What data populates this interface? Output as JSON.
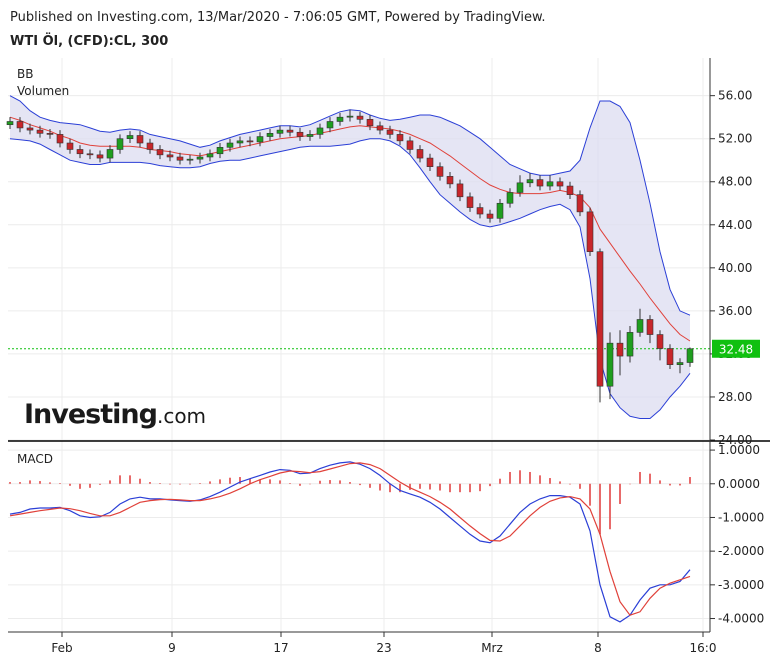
{
  "header": {
    "published": "Published on Investing.com, 13/Mar/2020 - 7:06:05 GMT, Powered by TradingView.",
    "symbol": "WTI Öl, (CFD):CL, 300"
  },
  "logo": {
    "name": "Investing",
    "suffix": ".com"
  },
  "chart_data": [
    {
      "type": "candlestick",
      "labels": [
        "BB",
        "Volumen"
      ],
      "x": [
        0,
        1,
        2,
        3,
        4,
        5,
        6,
        7,
        8,
        9,
        10,
        11,
        12,
        13,
        14,
        15,
        16,
        17,
        18,
        19,
        20,
        21,
        22,
        23,
        24,
        25,
        26,
        27,
        28,
        29,
        30,
        31,
        32,
        33,
        34,
        35,
        36,
        37,
        38,
        39,
        40,
        41,
        42,
        43,
        44,
        45,
        46,
        47,
        48,
        49,
        50,
        51,
        52,
        53,
        54,
        55,
        56,
        57,
        58,
        59,
        60,
        61,
        62,
        63,
        64,
        65,
        66,
        67,
        68
      ],
      "open": [
        53.3,
        53.6,
        53.0,
        52.8,
        52.5,
        52.4,
        51.6,
        51.0,
        50.6,
        50.5,
        50.2,
        51.0,
        52.0,
        52.3,
        51.6,
        51.0,
        50.5,
        50.3,
        50.0,
        50.1,
        50.3,
        50.6,
        51.2,
        51.6,
        51.8,
        51.7,
        52.2,
        52.5,
        52.8,
        52.6,
        52.2,
        52.4,
        53.0,
        53.6,
        54.0,
        54.1,
        53.8,
        53.2,
        52.8,
        52.4,
        51.8,
        51.0,
        50.2,
        49.4,
        48.5,
        47.8,
        46.6,
        45.6,
        45.0,
        44.6,
        46.0,
        47.0,
        47.9,
        48.2,
        47.6,
        48.0,
        47.6,
        46.8,
        45.2,
        41.5,
        29.0,
        33.0,
        31.8,
        34.0,
        35.2,
        33.8,
        32.5,
        31.0,
        31.2
      ],
      "high": [
        54.0,
        54.0,
        53.4,
        53.2,
        52.9,
        52.8,
        52.0,
        51.4,
        51.0,
        50.9,
        51.4,
        52.4,
        52.7,
        52.7,
        52.0,
        51.4,
        50.9,
        50.7,
        50.5,
        50.7,
        51.0,
        51.6,
        52.0,
        52.2,
        52.2,
        52.6,
        52.9,
        53.2,
        53.2,
        53.0,
        52.8,
        53.4,
        54.0,
        54.4,
        54.7,
        54.5,
        54.2,
        53.6,
        53.2,
        52.8,
        52.2,
        51.4,
        50.6,
        49.8,
        48.9,
        48.2,
        47.0,
        46.0,
        45.4,
        46.4,
        47.4,
        48.6,
        48.8,
        48.6,
        48.6,
        48.4,
        48.0,
        47.2,
        45.6,
        41.8,
        34.0,
        34.2,
        34.6,
        36.2,
        35.6,
        34.2,
        32.9,
        31.6,
        32.6
      ],
      "low": [
        52.9,
        52.6,
        52.4,
        52.1,
        52.0,
        51.2,
        50.6,
        50.2,
        50.1,
        49.8,
        49.8,
        50.6,
        51.6,
        51.2,
        50.6,
        50.1,
        49.9,
        49.6,
        49.6,
        49.7,
        49.9,
        50.2,
        50.8,
        51.2,
        51.3,
        51.3,
        51.8,
        52.1,
        52.2,
        51.8,
        51.8,
        52.0,
        52.6,
        53.2,
        53.6,
        53.4,
        52.8,
        52.4,
        52.0,
        51.4,
        50.6,
        49.8,
        49.0,
        48.1,
        47.4,
        46.2,
        45.2,
        44.6,
        44.2,
        44.2,
        45.6,
        46.6,
        47.5,
        47.2,
        47.2,
        47.2,
        46.4,
        44.8,
        41.1,
        27.5,
        27.8,
        30.0,
        31.2,
        33.6,
        33.0,
        31.4,
        30.6,
        30.2,
        30.8
      ],
      "close": [
        53.6,
        53.0,
        52.8,
        52.5,
        52.4,
        51.6,
        51.0,
        50.6,
        50.5,
        50.2,
        51.0,
        52.0,
        52.3,
        51.6,
        51.0,
        50.5,
        50.3,
        50.0,
        50.1,
        50.3,
        50.6,
        51.2,
        51.6,
        51.8,
        51.7,
        52.2,
        52.5,
        52.8,
        52.6,
        52.2,
        52.4,
        53.0,
        53.6,
        54.0,
        54.1,
        53.8,
        53.2,
        52.8,
        52.4,
        51.8,
        51.0,
        50.2,
        49.4,
        48.5,
        47.8,
        46.6,
        45.6,
        45.0,
        44.6,
        46.0,
        47.0,
        47.9,
        48.2,
        47.6,
        48.0,
        47.6,
        46.8,
        45.2,
        41.5,
        29.0,
        33.0,
        31.8,
        34.0,
        35.2,
        33.8,
        32.5,
        31.0,
        31.2,
        32.48
      ],
      "up_color": "#1f9e1f",
      "down_color": "#c8262b",
      "bands": {
        "upper": [
          56.0,
          55.5,
          54.6,
          54.0,
          53.7,
          53.5,
          53.4,
          53.3,
          53.0,
          52.7,
          52.6,
          52.8,
          52.9,
          52.8,
          52.4,
          52.2,
          52.0,
          51.8,
          51.5,
          51.2,
          51.4,
          51.8,
          52.1,
          52.4,
          52.6,
          52.8,
          53.0,
          53.2,
          53.2,
          53.1,
          53.3,
          53.7,
          54.1,
          54.5,
          54.7,
          54.6,
          54.2,
          53.9,
          53.7,
          53.8,
          54.0,
          54.2,
          54.2,
          54.0,
          53.6,
          53.2,
          52.6,
          52.0,
          51.2,
          50.4,
          49.6,
          49.2,
          48.8,
          48.6,
          48.6,
          48.8,
          49.0,
          50.0,
          53.0,
          55.5,
          55.5,
          55.0,
          53.5,
          50.0,
          46.0,
          41.5,
          38.0,
          36.0,
          35.6
        ],
        "middle": [
          54.0,
          53.7,
          53.3,
          53.0,
          52.7,
          52.3,
          52.0,
          51.6,
          51.4,
          51.3,
          51.3,
          51.3,
          51.3,
          51.2,
          51.0,
          50.9,
          50.8,
          50.6,
          50.5,
          50.4,
          50.6,
          50.8,
          51.0,
          51.2,
          51.4,
          51.6,
          51.8,
          52.0,
          52.1,
          52.2,
          52.3,
          52.5,
          52.7,
          52.9,
          53.1,
          53.2,
          53.1,
          53.0,
          52.9,
          52.7,
          52.4,
          52.0,
          51.6,
          51.0,
          50.4,
          49.7,
          49.0,
          48.3,
          47.7,
          47.3,
          47.0,
          46.9,
          46.9,
          46.9,
          47.0,
          47.2,
          47.0,
          46.6,
          45.6,
          43.6,
          42.3,
          41.0,
          39.7,
          38.5,
          37.2,
          36.0,
          34.8,
          33.8,
          33.2
        ],
        "lower": [
          52.0,
          51.9,
          51.8,
          51.5,
          51.0,
          50.5,
          50.0,
          49.8,
          49.6,
          49.6,
          49.8,
          49.8,
          49.8,
          49.8,
          49.7,
          49.5,
          49.4,
          49.3,
          49.3,
          49.4,
          49.7,
          49.9,
          50.0,
          50.0,
          50.2,
          50.4,
          50.6,
          50.8,
          51.0,
          51.2,
          51.3,
          51.3,
          51.3,
          51.4,
          51.5,
          51.8,
          52.0,
          52.0,
          51.8,
          51.3,
          50.5,
          49.3,
          48.0,
          46.8,
          46.0,
          45.2,
          44.5,
          44.0,
          43.8,
          44.0,
          44.3,
          44.6,
          45.0,
          45.4,
          45.7,
          45.9,
          45.4,
          43.8,
          39.0,
          31.5,
          28.3,
          27.0,
          26.2,
          26.0,
          26.0,
          26.8,
          28.0,
          29.0,
          30.2
        ],
        "color": "#2b3fd6",
        "middle_color": "#e0413a",
        "fill": "#dcdcf0"
      },
      "last_price": 32.48,
      "last_price_color": "#10c010",
      "xlim": [
        0,
        70
      ],
      "ylim": [
        24,
        59.5
      ],
      "yticks": [
        {
          "value": 24,
          "label": "24.00"
        },
        {
          "value": 28,
          "label": "28.00"
        },
        {
          "value": 32,
          "label": "32.00"
        },
        {
          "value": 36,
          "label": "36.00"
        },
        {
          "value": 40,
          "label": "40.00"
        },
        {
          "value": 44,
          "label": "44.00"
        },
        {
          "value": 48,
          "label": "48.00"
        },
        {
          "value": 52,
          "label": "52.00"
        },
        {
          "value": 56,
          "label": "56.00"
        }
      ],
      "grid": true
    },
    {
      "type": "macd",
      "label": "MACD",
      "series": [
        {
          "color": "#2b3fd6",
          "values": [
            -0.9,
            -0.85,
            -0.75,
            -0.72,
            -0.72,
            -0.7,
            -0.8,
            -0.95,
            -1.0,
            -0.98,
            -0.85,
            -0.6,
            -0.45,
            -0.4,
            -0.45,
            -0.45,
            -0.48,
            -0.5,
            -0.52,
            -0.48,
            -0.38,
            -0.25,
            -0.1,
            0.05,
            0.15,
            0.25,
            0.35,
            0.42,
            0.4,
            0.3,
            0.32,
            0.45,
            0.55,
            0.62,
            0.65,
            0.58,
            0.45,
            0.25,
            0.0,
            -0.2,
            -0.3,
            -0.4,
            -0.55,
            -0.75,
            -1.0,
            -1.25,
            -1.5,
            -1.7,
            -1.75,
            -1.55,
            -1.2,
            -0.85,
            -0.6,
            -0.45,
            -0.35,
            -0.35,
            -0.4,
            -0.6,
            -1.4,
            -3.0,
            -3.95,
            -4.1,
            -3.9,
            -3.45,
            -3.1,
            -3.0,
            -3.0,
            -2.9,
            -2.55
          ]
        },
        {
          "color": "#e0413a",
          "values": [
            -0.95,
            -0.9,
            -0.85,
            -0.8,
            -0.76,
            -0.72,
            -0.74,
            -0.8,
            -0.88,
            -0.95,
            -0.95,
            -0.85,
            -0.7,
            -0.55,
            -0.5,
            -0.47,
            -0.46,
            -0.48,
            -0.5,
            -0.5,
            -0.45,
            -0.38,
            -0.28,
            -0.15,
            0.0,
            0.12,
            0.22,
            0.32,
            0.38,
            0.36,
            0.33,
            0.36,
            0.44,
            0.52,
            0.6,
            0.62,
            0.57,
            0.45,
            0.25,
            0.05,
            -0.12,
            -0.25,
            -0.38,
            -0.55,
            -0.75,
            -1.0,
            -1.25,
            -1.48,
            -1.68,
            -1.7,
            -1.55,
            -1.25,
            -0.95,
            -0.7,
            -0.52,
            -0.42,
            -0.38,
            -0.45,
            -0.75,
            -1.5,
            -2.6,
            -3.5,
            -3.9,
            -3.8,
            -3.4,
            -3.1,
            -2.95,
            -2.85,
            -2.75
          ]
        }
      ],
      "histogram": {
        "color": "#e86a6a",
        "values": [
          0.05,
          0.05,
          0.1,
          0.08,
          0.04,
          0.02,
          -0.06,
          -0.15,
          -0.12,
          -0.03,
          0.1,
          0.25,
          0.25,
          0.15,
          0.05,
          0.02,
          -0.02,
          -0.02,
          -0.02,
          0.02,
          0.07,
          0.13,
          0.18,
          0.2,
          0.15,
          0.13,
          0.13,
          0.1,
          0.02,
          -0.06,
          -0.01,
          0.09,
          0.11,
          0.1,
          0.05,
          -0.04,
          -0.12,
          -0.2,
          -0.25,
          -0.25,
          -0.18,
          -0.15,
          -0.17,
          -0.2,
          -0.25,
          -0.25,
          -0.25,
          -0.22,
          -0.07,
          0.15,
          0.35,
          0.4,
          0.35,
          0.25,
          0.17,
          0.07,
          -0.02,
          -0.15,
          -0.65,
          -1.5,
          -1.35,
          -0.6,
          0.0,
          0.35,
          0.3,
          0.1,
          -0.05,
          -0.05,
          0.2
        ]
      },
      "xlim": [
        0,
        70
      ],
      "ylim": [
        -4.4,
        1.24
      ],
      "yticks": [
        {
          "value": 1,
          "label": "1.0000"
        },
        {
          "value": 0,
          "label": "0.0000"
        },
        {
          "value": -1,
          "label": "-1.0000"
        },
        {
          "value": -2,
          "label": "-2.0000"
        },
        {
          "value": -3,
          "label": "-3.0000"
        },
        {
          "value": -4,
          "label": "-4.0000"
        }
      ],
      "xticks": [
        {
          "value": 5.2,
          "label": "Feb"
        },
        {
          "value": 16.2,
          "label": "9"
        },
        {
          "value": 27.1,
          "label": "17"
        },
        {
          "value": 37.4,
          "label": "23"
        },
        {
          "value": 48.2,
          "label": "Mrz"
        },
        {
          "value": 58.8,
          "label": "8"
        },
        {
          "value": 69.3,
          "label": "16:0"
        }
      ],
      "grid": true
    }
  ]
}
